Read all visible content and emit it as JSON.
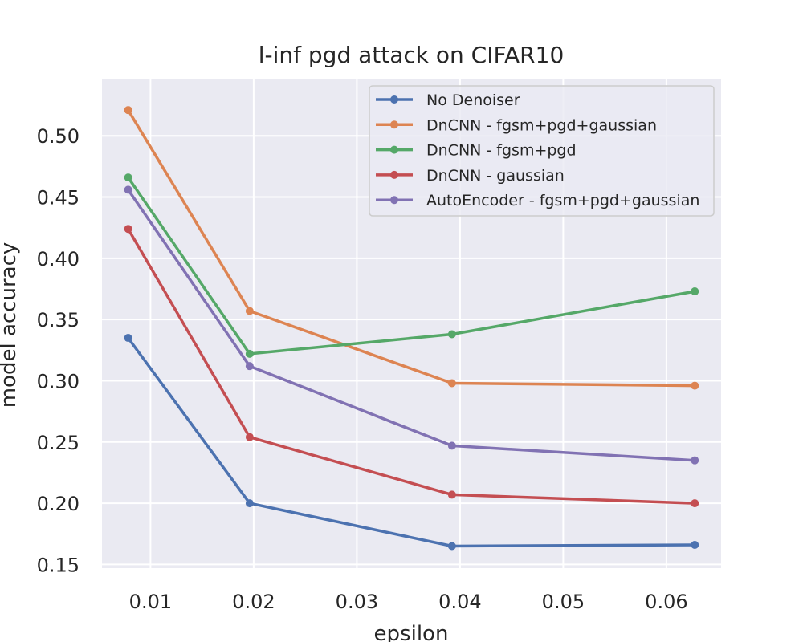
{
  "chart_data": {
    "type": "line",
    "title": "l-inf pgd attack on CIFAR10",
    "xlabel": "epsilon",
    "ylabel": "model accuracy",
    "x": [
      0.00784,
      0.01961,
      0.03922,
      0.06275
    ],
    "xlim": [
      0.0053,
      0.0653
    ],
    "ylim": [
      0.147,
      0.546
    ],
    "xticks": [
      0.01,
      0.02,
      0.03,
      0.04,
      0.05,
      0.06
    ],
    "xtick_labels": [
      "0.01",
      "0.02",
      "0.03",
      "0.04",
      "0.05",
      "0.06"
    ],
    "yticks": [
      0.15,
      0.2,
      0.25,
      0.3,
      0.35,
      0.4,
      0.45,
      0.5
    ],
    "ytick_labels": [
      "0.15",
      "0.20",
      "0.25",
      "0.30",
      "0.35",
      "0.40",
      "0.45",
      "0.50"
    ],
    "grid": true,
    "legend_position": "top-right",
    "series": [
      {
        "name": "No Denoiser",
        "color": "#4c72b0",
        "values": [
          0.335,
          0.2,
          0.165,
          0.166
        ]
      },
      {
        "name": "DnCNN - fgsm+pgd+gaussian",
        "color": "#dd8452",
        "values": [
          0.521,
          0.357,
          0.298,
          0.296
        ]
      },
      {
        "name": "DnCNN - fgsm+pgd",
        "color": "#55a868",
        "values": [
          0.466,
          0.322,
          0.338,
          0.373
        ]
      },
      {
        "name": "DnCNN - gaussian",
        "color": "#c44e52",
        "values": [
          0.424,
          0.254,
          0.207,
          0.2
        ]
      },
      {
        "name": "AutoEncoder - fgsm+pgd+gaussian",
        "color": "#8172b3",
        "values": [
          0.456,
          0.312,
          0.247,
          0.235
        ]
      }
    ]
  }
}
